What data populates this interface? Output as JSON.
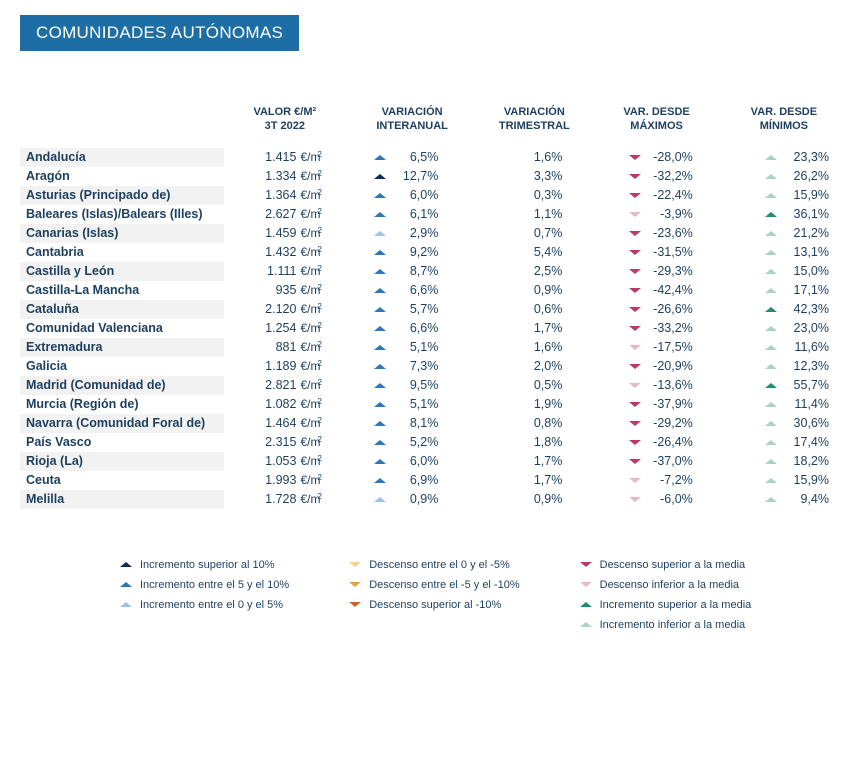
{
  "title": "COMUNIDADES AUTÓNOMAS",
  "unit_label": "€/m",
  "unit_sup": "2",
  "colors": {
    "inc_gt10": "#0b2e59",
    "inc_5_10": "#2e78b7",
    "inc_0_5": "#9dc3e6",
    "dec_0_5": "#f6d487",
    "dec_5_10": "#e8a33d",
    "dec_gt10": "#d25f2c",
    "above_avg_down": "#b83a6a",
    "below_avg_down": "#e8b8cb",
    "above_avg_up": "#1e8f6e",
    "below_avg_up": "#a9d4c5"
  },
  "headers": {
    "name": "",
    "value": "VALOR €/M²\n3T 2022",
    "inter": "VARIACIÓN\nINTERANUAL",
    "trim": "VARIACIÓN\nTRIMESTRAL",
    "max": "VAR. DESDE\nMÁXIMOS",
    "min": "VAR. DESDE\nMÍNIMOS"
  },
  "rows": [
    {
      "name": "Andalucía",
      "value": "1.415",
      "inter": {
        "v": "6,5%",
        "c": "inc_5_10"
      },
      "trim": {
        "v": "1,6%"
      },
      "max": {
        "v": "-28,0%",
        "c": "above_avg_down"
      },
      "min": {
        "v": "23,3%",
        "c": "below_avg_up"
      }
    },
    {
      "name": "Aragón",
      "value": "1.334",
      "inter": {
        "v": "12,7%",
        "c": "inc_gt10"
      },
      "trim": {
        "v": "3,3%"
      },
      "max": {
        "v": "-32,2%",
        "c": "above_avg_down"
      },
      "min": {
        "v": "26,2%",
        "c": "below_avg_up"
      }
    },
    {
      "name": "Asturias (Principado de)",
      "value": "1.364",
      "inter": {
        "v": "6,0%",
        "c": "inc_5_10"
      },
      "trim": {
        "v": "0,3%"
      },
      "max": {
        "v": "-22,4%",
        "c": "above_avg_down"
      },
      "min": {
        "v": "15,9%",
        "c": "below_avg_up"
      }
    },
    {
      "name": "Baleares (Islas)/Balears (Illes)",
      "value": "2.627",
      "inter": {
        "v": "6,1%",
        "c": "inc_5_10"
      },
      "trim": {
        "v": "1,1%"
      },
      "max": {
        "v": "-3,9%",
        "c": "below_avg_down"
      },
      "min": {
        "v": "36,1%",
        "c": "above_avg_up"
      }
    },
    {
      "name": "Canarias (Islas)",
      "value": "1.459",
      "inter": {
        "v": "2,9%",
        "c": "inc_0_5"
      },
      "trim": {
        "v": "0,7%"
      },
      "max": {
        "v": "-23,6%",
        "c": "above_avg_down"
      },
      "min": {
        "v": "21,2%",
        "c": "below_avg_up"
      }
    },
    {
      "name": "Cantabria",
      "value": "1.432",
      "inter": {
        "v": "9,2%",
        "c": "inc_5_10"
      },
      "trim": {
        "v": "5,4%"
      },
      "max": {
        "v": "-31,5%",
        "c": "above_avg_down"
      },
      "min": {
        "v": "13,1%",
        "c": "below_avg_up"
      }
    },
    {
      "name": "Castilla y León",
      "value": "1.111",
      "inter": {
        "v": "8,7%",
        "c": "inc_5_10"
      },
      "trim": {
        "v": "2,5%"
      },
      "max": {
        "v": "-29,3%",
        "c": "above_avg_down"
      },
      "min": {
        "v": "15,0%",
        "c": "below_avg_up"
      }
    },
    {
      "name": "Castilla-La Mancha",
      "value": "935",
      "inter": {
        "v": "6,6%",
        "c": "inc_5_10"
      },
      "trim": {
        "v": "0,9%"
      },
      "max": {
        "v": "-42,4%",
        "c": "above_avg_down"
      },
      "min": {
        "v": "17,1%",
        "c": "below_avg_up"
      }
    },
    {
      "name": "Cataluña",
      "value": "2.120",
      "inter": {
        "v": "5,7%",
        "c": "inc_5_10"
      },
      "trim": {
        "v": "0,6%"
      },
      "max": {
        "v": "-26,6%",
        "c": "above_avg_down"
      },
      "min": {
        "v": "42,3%",
        "c": "above_avg_up"
      }
    },
    {
      "name": "Comunidad Valenciana",
      "value": "1.254",
      "inter": {
        "v": "6,6%",
        "c": "inc_5_10"
      },
      "trim": {
        "v": "1,7%"
      },
      "max": {
        "v": "-33,2%",
        "c": "above_avg_down"
      },
      "min": {
        "v": "23,0%",
        "c": "below_avg_up"
      }
    },
    {
      "name": "Extremadura",
      "value": "881",
      "inter": {
        "v": "5,1%",
        "c": "inc_5_10"
      },
      "trim": {
        "v": "1,6%"
      },
      "max": {
        "v": "-17,5%",
        "c": "below_avg_down"
      },
      "min": {
        "v": "11,6%",
        "c": "below_avg_up"
      }
    },
    {
      "name": "Galicia",
      "value": "1.189",
      "inter": {
        "v": "7,3%",
        "c": "inc_5_10"
      },
      "trim": {
        "v": "2,0%"
      },
      "max": {
        "v": "-20,9%",
        "c": "above_avg_down"
      },
      "min": {
        "v": "12,3%",
        "c": "below_avg_up"
      }
    },
    {
      "name": "Madrid (Comunidad de)",
      "value": "2.821",
      "inter": {
        "v": "9,5%",
        "c": "inc_5_10"
      },
      "trim": {
        "v": "0,5%"
      },
      "max": {
        "v": "-13,6%",
        "c": "below_avg_down"
      },
      "min": {
        "v": "55,7%",
        "c": "above_avg_up"
      }
    },
    {
      "name": "Murcia (Región de)",
      "value": "1.082",
      "inter": {
        "v": "5,1%",
        "c": "inc_5_10"
      },
      "trim": {
        "v": "1,9%"
      },
      "max": {
        "v": "-37,9%",
        "c": "above_avg_down"
      },
      "min": {
        "v": "11,4%",
        "c": "below_avg_up"
      }
    },
    {
      "name": "Navarra (Comunidad Foral de)",
      "value": "1.464",
      "inter": {
        "v": "8,1%",
        "c": "inc_5_10"
      },
      "trim": {
        "v": "0,8%"
      },
      "max": {
        "v": "-29,2%",
        "c": "above_avg_down"
      },
      "min": {
        "v": "30,6%",
        "c": "below_avg_up"
      }
    },
    {
      "name": "País Vasco",
      "value": "2.315",
      "inter": {
        "v": "5,2%",
        "c": "inc_5_10"
      },
      "trim": {
        "v": "1,8%"
      },
      "max": {
        "v": "-26,4%",
        "c": "above_avg_down"
      },
      "min": {
        "v": "17,4%",
        "c": "below_avg_up"
      }
    },
    {
      "name": "Rioja (La)",
      "value": "1.053",
      "inter": {
        "v": "6,0%",
        "c": "inc_5_10"
      },
      "trim": {
        "v": "1,7%"
      },
      "max": {
        "v": "-37,0%",
        "c": "above_avg_down"
      },
      "min": {
        "v": "18,2%",
        "c": "below_avg_up"
      }
    },
    {
      "name": "Ceuta",
      "value": "1.993",
      "inter": {
        "v": "6,9%",
        "c": "inc_5_10"
      },
      "trim": {
        "v": "1,7%"
      },
      "max": {
        "v": "-7,2%",
        "c": "below_avg_down"
      },
      "min": {
        "v": "15,9%",
        "c": "below_avg_up"
      }
    },
    {
      "name": "Melilla",
      "value": "1.728",
      "inter": {
        "v": "0,9%",
        "c": "inc_0_5"
      },
      "trim": {
        "v": "0,9%"
      },
      "max": {
        "v": "-6,0%",
        "c": "below_avg_down"
      },
      "min": {
        "v": "9,4%",
        "c": "below_avg_up"
      }
    }
  ],
  "legend": [
    [
      {
        "dir": "up",
        "c": "inc_gt10",
        "label": "Incremento superior al 10%"
      },
      {
        "dir": "up",
        "c": "inc_5_10",
        "label": "Incremento entre el 5 y el 10%"
      },
      {
        "dir": "up",
        "c": "inc_0_5",
        "label": "Incremento entre el 0 y el 5%"
      }
    ],
    [
      {
        "dir": "down",
        "c": "dec_0_5",
        "label": "Descenso entre el 0 y el -5%"
      },
      {
        "dir": "down",
        "c": "dec_5_10",
        "label": "Descenso entre el -5 y el -10%"
      },
      {
        "dir": "down",
        "c": "dec_gt10",
        "label": "Descenso superior al -10%"
      }
    ],
    [
      {
        "dir": "down",
        "c": "above_avg_down",
        "label": "Descenso superior a la media"
      },
      {
        "dir": "down",
        "c": "below_avg_down",
        "label": "Descenso inferior a la media"
      },
      {
        "dir": "up",
        "c": "above_avg_up",
        "label": "Incremento superior a la media"
      },
      {
        "dir": "up",
        "c": "below_avg_up",
        "label": "Incremento inferior a la media"
      }
    ]
  ]
}
